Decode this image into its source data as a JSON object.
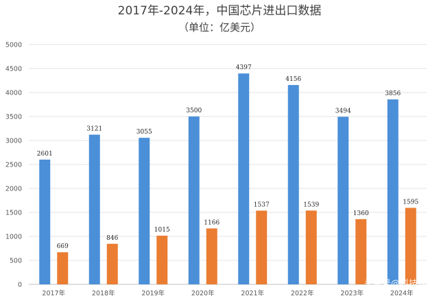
{
  "chart_data": {
    "type": "bar",
    "title": "2017年-2024年，中国芯片进出口数据",
    "subtitle": "（单位：亿美元）",
    "categories": [
      "2017年",
      "2018年",
      "2019年",
      "2020年",
      "2021年",
      "2022年",
      "2023年",
      "2024年"
    ],
    "series": [
      {
        "values": [
          2601,
          3121,
          3055,
          3500,
          4397,
          4156,
          3494,
          3856
        ],
        "color": "#4a8fd8"
      },
      {
        "values": [
          669,
          846,
          1015,
          1166,
          1537,
          1539,
          1360,
          1595
        ],
        "color": "#ea7d32"
      }
    ],
    "ylim": [
      0,
      5000
    ],
    "yticks": [
      0,
      500,
      1000,
      1500,
      2000,
      2500,
      3000,
      3500,
      4000,
      4500,
      5000
    ],
    "grid": true,
    "legend": "none",
    "xlabel": "",
    "ylabel": ""
  },
  "watermark": "头条号@科技洋"
}
